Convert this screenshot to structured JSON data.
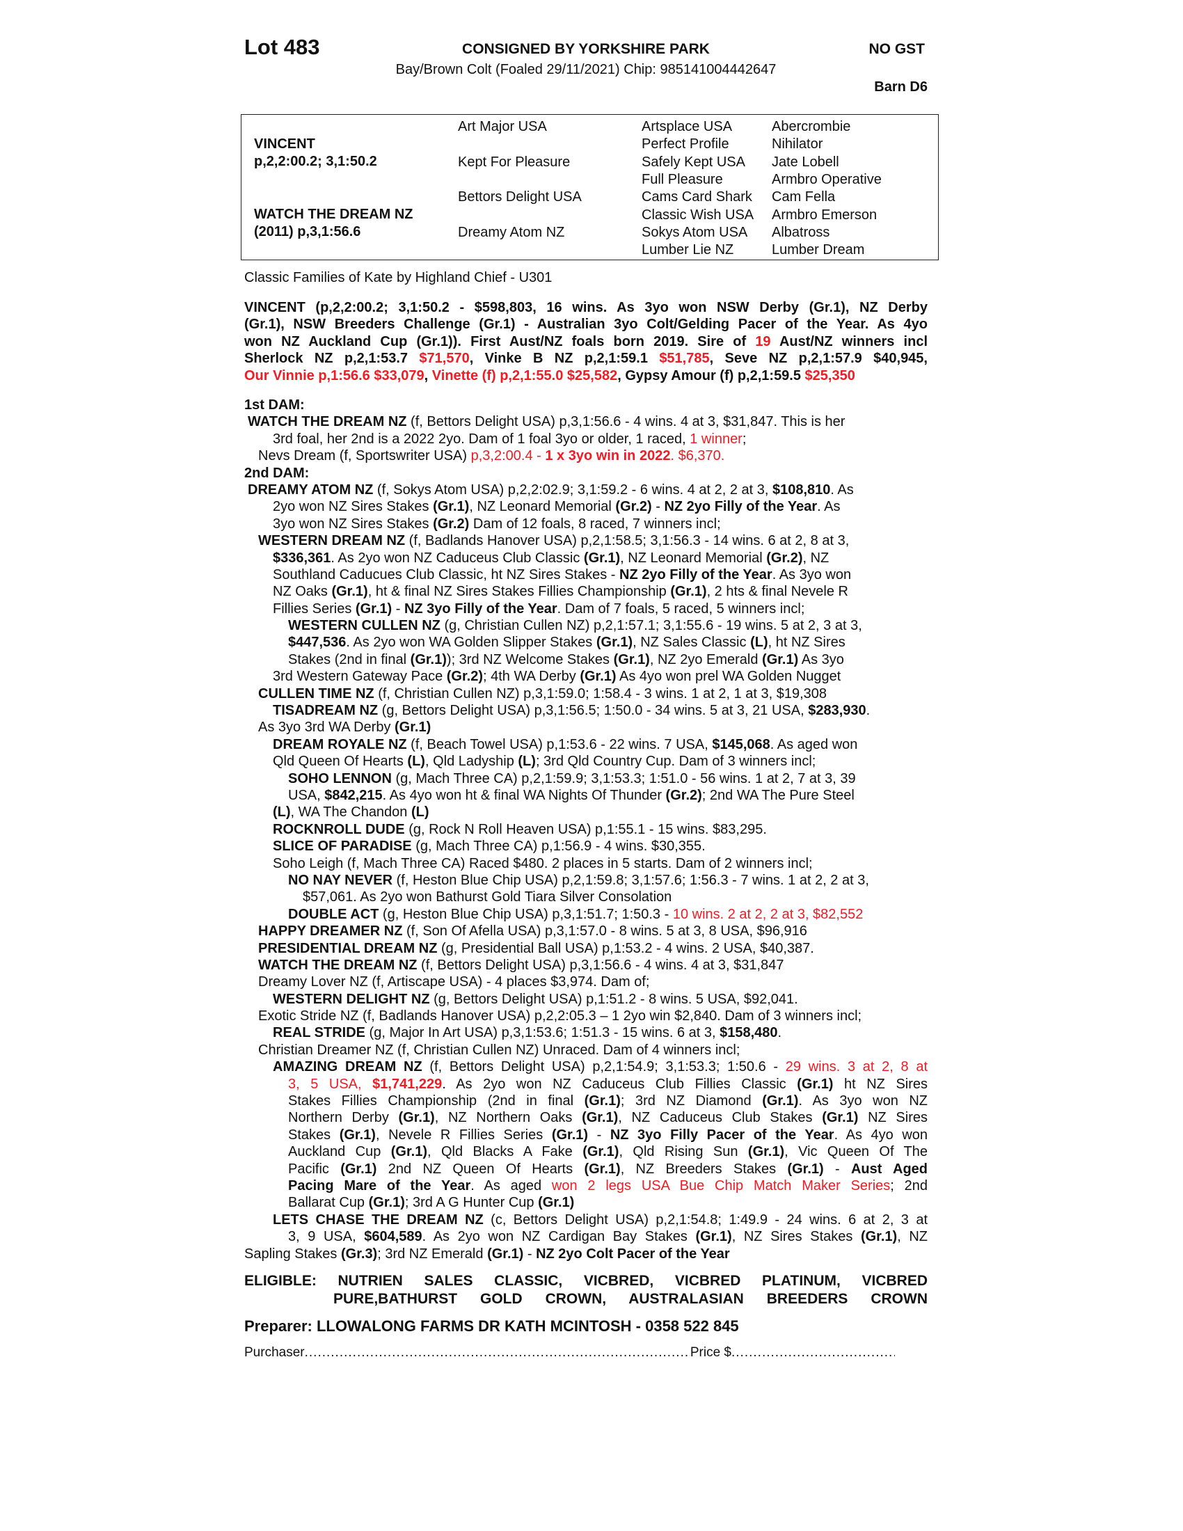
{
  "header": {
    "lot": "Lot 483",
    "consigned": "CONSIGNED BY YORKSHIRE PARK",
    "gst": "NO GST",
    "description": "Bay/Brown Colt (Foaled 29/11/2021) Chip: 985141004442647",
    "barn": "Barn D6"
  },
  "pedigree": {
    "sire": {
      "name": "VINCENT",
      "record": "p,2,2:00.2; 3,1:50.2"
    },
    "dam": {
      "name": "WATCH THE DREAM NZ",
      "record": "(2011) p,3,1:56.6"
    },
    "gen2": [
      "Art Major USA",
      "Kept For Pleasure",
      "Bettors Delight USA",
      "Dreamy Atom NZ"
    ],
    "gen3": [
      "Artsplace USA",
      "Perfect Profile",
      "Safely Kept USA",
      "Full Pleasure",
      "Cams Card Shark",
      "Classic Wish USA",
      "Sokys Atom USA",
      "Lumber Lie NZ"
    ],
    "gen4": [
      "Abercrombie",
      "Nihilator",
      "Jate Lobell",
      "Armbro Operative",
      "Cam Fella",
      "Armbro Emerson",
      "Albatross",
      "Lumber Dream"
    ]
  },
  "family": "Classic Families of Kate by Highland Chief - U301",
  "accent_color": "#ee1c24",
  "sire_summary": [
    [
      [
        "VINCENT (p,2,2:00.2; 3,1:50.2 - $598,803, 16 wins. As 3yo won NSW Derby (Gr.1), NZ Derby",
        "b"
      ]
    ],
    [
      [
        "(Gr.1), NSW Breeders Challenge (Gr.1) - Australian 3yo Colt/Gelding Pacer of the Year. As 4yo",
        "b"
      ]
    ],
    [
      [
        "won NZ Auckland Cup (Gr.1)). First Aust/NZ foals born 2019. Sire of ",
        "b"
      ],
      [
        "19",
        "rb"
      ],
      [
        " Aust/NZ winners incl",
        "b"
      ]
    ],
    [
      [
        "Sherlock NZ p,2,1:53.7 ",
        "b"
      ],
      [
        "$71,570",
        "rb"
      ],
      [
        ", Vinke B NZ p,2,1:59.1 ",
        "b"
      ],
      [
        "$51,785",
        "rb"
      ],
      [
        ", Seve NZ p,2,1:57.9 $40,945,",
        "b"
      ]
    ],
    [
      [
        "Our Vinnie p,1:56.6 $33,079",
        "rb"
      ],
      [
        ", ",
        "b"
      ],
      [
        "Vinette (f) p,2,1:55.0 $25,582",
        "rb"
      ],
      [
        ", Gypsy Amour (f) p,2,1:59.5 ",
        "b"
      ],
      [
        "$25,350",
        "rb"
      ]
    ]
  ],
  "family_lines": [
    [
      [
        "1st DAM:",
        "b"
      ]
    ],
    [
      [
        "WATCH THE DREAM NZ",
        "b"
      ],
      [
        " (f, Bettors Delight USA) p,3,1:56.6 - 4 wins. 4 at 3, $31,847. This is her",
        ""
      ]
    ],
    [
      [
        "3rd foal, her 2nd is a 2022 2yo. Dam of 1 foal 3yo or older, 1 raced, ",
        ""
      ],
      [
        "1 winner",
        "r"
      ],
      [
        ";",
        ""
      ]
    ],
    [
      [
        "Nevs Dream (f, Sportswriter USA) ",
        ""
      ],
      [
        "p,3,2:00.4 - ",
        "r"
      ],
      [
        "1 x 3yo win in 2022",
        "rb"
      ],
      [
        ". $6,370.",
        "r"
      ]
    ],
    [
      [
        "2nd DAM:",
        "b"
      ]
    ],
    [
      [
        "DREAMY ATOM NZ",
        "b"
      ],
      [
        " (f, Sokys Atom USA) p,2,2:02.9; 3,1:59.2 - 6 wins. 4 at 2, 2 at 3, ",
        ""
      ],
      [
        "$108,810",
        "b"
      ],
      [
        ". As",
        ""
      ]
    ],
    [
      [
        "2yo won NZ Sires Stakes ",
        ""
      ],
      [
        "(Gr.1)",
        "b"
      ],
      [
        ", NZ Leonard Memorial ",
        ""
      ],
      [
        "(Gr.2)",
        "b"
      ],
      [
        " - ",
        ""
      ],
      [
        "NZ 2yo Filly of the Year",
        "b"
      ],
      [
        ". As",
        ""
      ]
    ],
    [
      [
        "3yo won NZ Sires Stakes ",
        ""
      ],
      [
        "(Gr.2)",
        "b"
      ],
      [
        " Dam of 12 foals, 8 raced, 7 winners incl;",
        ""
      ]
    ],
    [
      [
        "WESTERN DREAM NZ",
        "b"
      ],
      [
        " (f, Badlands Hanover USA) p,2,1:58.5; 3,1:56.3 - 14 wins. 6 at 2, 8 at 3,",
        ""
      ]
    ],
    [
      [
        "$336,361",
        "b"
      ],
      [
        ". As 2yo won NZ Caduceus Club Classic ",
        ""
      ],
      [
        "(Gr.1)",
        "b"
      ],
      [
        ", NZ Leonard Memorial ",
        ""
      ],
      [
        "(Gr.2)",
        "b"
      ],
      [
        ", NZ",
        ""
      ]
    ],
    [
      [
        "Southland Caducues Club Classic, ht NZ Sires Stakes - ",
        ""
      ],
      [
        "NZ 2yo Filly of the Year",
        "b"
      ],
      [
        ". As 3yo won",
        ""
      ]
    ],
    [
      [
        "NZ Oaks ",
        ""
      ],
      [
        "(Gr.1)",
        "b"
      ],
      [
        ", ht & final NZ Sires Stakes Fillies Championship ",
        ""
      ],
      [
        "(Gr.1)",
        "b"
      ],
      [
        ", 2 hts & final Nevele R",
        ""
      ]
    ],
    [
      [
        "Fillies Series ",
        ""
      ],
      [
        "(Gr.1)",
        "b"
      ],
      [
        " - ",
        ""
      ],
      [
        "NZ 3yo Filly of the Year",
        "b"
      ],
      [
        ". Dam of 7 foals, 5 raced, 5 winners incl;",
        ""
      ]
    ],
    [
      [
        "WESTERN CULLEN NZ",
        "b"
      ],
      [
        " (g, Christian Cullen NZ) p,2,1:57.1; 3,1:55.6 - 19 wins. 5 at 2, 3 at 3,",
        ""
      ]
    ],
    [
      [
        "$447,536",
        "b"
      ],
      [
        ". As 2yo won WA Golden Slipper Stakes ",
        ""
      ],
      [
        "(Gr.1)",
        "b"
      ],
      [
        ", NZ Sales Classic ",
        ""
      ],
      [
        "(L)",
        "b"
      ],
      [
        ", ht NZ Sires",
        ""
      ]
    ],
    [
      [
        "Stakes (2nd in final ",
        ""
      ],
      [
        "(Gr.1)",
        "b"
      ],
      [
        "); 3rd NZ Welcome Stakes ",
        ""
      ],
      [
        "(Gr.1)",
        "b"
      ],
      [
        ", NZ 2yo Emerald ",
        ""
      ],
      [
        "(Gr.1)",
        "b"
      ],
      [
        " As 3yo",
        ""
      ]
    ],
    [
      [
        "3rd Western Gateway Pace ",
        ""
      ],
      [
        "(Gr.2)",
        "b"
      ],
      [
        "; 4th WA Derby ",
        ""
      ],
      [
        "(Gr.1)",
        "b"
      ],
      [
        " As 4yo won prel WA Golden Nugget",
        ""
      ]
    ],
    [
      [
        "CULLEN TIME NZ",
        "b"
      ],
      [
        " (f, Christian Cullen NZ) p,3,1:59.0; 1:58.4 - 3 wins. 1 at 2, 1 at 3, $19,308",
        ""
      ]
    ],
    [
      [
        "TISADREAM NZ",
        "b"
      ],
      [
        " (g, Bettors Delight USA) p,3,1:56.5; 1:50.0 - 34 wins. 5 at 3, 21 USA, ",
        ""
      ],
      [
        "$283,930",
        "b"
      ],
      [
        ".",
        ""
      ]
    ],
    [
      [
        "As 3yo 3rd WA Derby ",
        ""
      ],
      [
        "(Gr.1)",
        "b"
      ]
    ],
    [
      [
        "DREAM ROYALE NZ",
        "b"
      ],
      [
        " (f, Beach Towel USA) p,1:53.6 - 22 wins. 7 USA, ",
        ""
      ],
      [
        "$145,068",
        "b"
      ],
      [
        ". As aged won",
        ""
      ]
    ],
    [
      [
        "Qld Queen Of Hearts ",
        ""
      ],
      [
        "(L)",
        "b"
      ],
      [
        ", Qld Ladyship ",
        ""
      ],
      [
        "(L)",
        "b"
      ],
      [
        "; 3rd Qld Country Cup. Dam of 3 winners incl;",
        ""
      ]
    ],
    [
      [
        "SOHO LENNON",
        "b"
      ],
      [
        " (g, Mach Three CA) p,2,1:59.9; 3,1:53.3; 1:51.0 - 56 wins. 1 at 2, 7 at 3, 39",
        ""
      ]
    ],
    [
      [
        "USA, ",
        ""
      ],
      [
        "$842,215",
        "b"
      ],
      [
        ". As 4yo won ht & final WA Nights Of Thunder ",
        ""
      ],
      [
        "(Gr.2)",
        "b"
      ],
      [
        "; 2nd WA The Pure Steel",
        ""
      ]
    ],
    [
      [
        "(L)",
        "b"
      ],
      [
        ", WA The Chandon ",
        ""
      ],
      [
        "(L)",
        "b"
      ]
    ],
    [
      [
        "ROCKNROLL DUDE",
        "b"
      ],
      [
        " (g, Rock N Roll Heaven USA) p,1:55.1 - 15 wins. $83,295.",
        ""
      ]
    ],
    [
      [
        "SLICE OF PARADISE",
        "b"
      ],
      [
        " (g, Mach Three CA) p,1:56.9 - 4 wins. $30,355.",
        ""
      ]
    ],
    [
      [
        "Soho Leigh (f, Mach Three CA) Raced $480. 2 places in 5 starts. Dam of 2 winners incl;",
        ""
      ]
    ],
    [
      [
        "NO NAY NEVER",
        "b"
      ],
      [
        " (f, Heston Blue Chip USA) p,2,1:59.8; 3,1:57.6; 1:56.3 - 7 wins. 1 at 2, 2 at 3,",
        ""
      ]
    ],
    [
      [
        "$57,061. As 2yo won Bathurst Gold Tiara Silver Consolation",
        ""
      ]
    ],
    [
      [
        "DOUBLE ACT",
        "b"
      ],
      [
        " (g, Heston Blue Chip USA) p,3,1:51.7; 1:50.3 - ",
        ""
      ],
      [
        "10 wins. 2 at 2, 2 at 3, $82,552",
        "r"
      ]
    ],
    [
      [
        "HAPPY DREAMER NZ",
        "b"
      ],
      [
        " (f, Son Of Afella USA) p,3,1:57.0 - 8 wins. 5 at 3, 8 USA, $96,916",
        ""
      ]
    ],
    [
      [
        "PRESIDENTIAL DREAM NZ",
        "b"
      ],
      [
        " (g, Presidential Ball USA) p,1:53.2 - 4 wins. 2 USA, $40,387.",
        ""
      ]
    ],
    [
      [
        "WATCH THE DREAM NZ",
        "b"
      ],
      [
        " (f, Bettors Delight USA) p,3,1:56.6 - 4 wins. 4 at 3, $31,847",
        ""
      ]
    ],
    [
      [
        "Dreamy Lover NZ (f, Artiscape USA) - 4 places $3,974. Dam of;",
        ""
      ]
    ],
    [
      [
        "WESTERN DELIGHT NZ",
        "b"
      ],
      [
        " (g, Bettors Delight USA) p,1:51.2 - 8 wins. 5 USA, $92,041.",
        ""
      ]
    ],
    [
      [
        "Exotic Stride NZ (f, Badlands Hanover USA) p,2,2:05.3 – 1 2yo win $2,840. Dam of 3 winners incl;",
        ""
      ]
    ],
    [
      [
        "REAL STRIDE",
        "b"
      ],
      [
        " (g, Major In Art USA) p,3,1:53.6; 1:51.3 - 15 wins. 6 at 3, ",
        ""
      ],
      [
        "$158,480",
        "b"
      ],
      [
        ".",
        ""
      ]
    ],
    [
      [
        "Christian Dreamer NZ (f, Christian Cullen NZ) Unraced. Dam of 4 winners incl;",
        ""
      ]
    ],
    [
      [
        "AMAZING DREAM NZ",
        "b"
      ],
      [
        " (f, Bettors Delight USA) p,2,1:54.9; 3,1:53.3; 1:50.6 - ",
        ""
      ],
      [
        "29 wins. 3 at 2, 8 at",
        "r"
      ]
    ],
    [
      [
        "3, 5 USA, ",
        "r"
      ],
      [
        "$1,741,229",
        "rb"
      ],
      [
        ". As 2yo won NZ Caduceus Club Fillies Classic ",
        ""
      ],
      [
        "(Gr.1)",
        "b"
      ],
      [
        " ht NZ Sires",
        ""
      ]
    ],
    [
      [
        "Stakes Fillies Championship (2nd in final ",
        ""
      ],
      [
        "(Gr.1)",
        "b"
      ],
      [
        "; 3rd NZ Diamond ",
        ""
      ],
      [
        "(Gr.1)",
        "b"
      ],
      [
        ". As 3yo won NZ",
        ""
      ]
    ],
    [
      [
        "Northern Derby ",
        ""
      ],
      [
        "(Gr.1)",
        "b"
      ],
      [
        ", NZ Northern Oaks ",
        ""
      ],
      [
        "(Gr.1)",
        "b"
      ],
      [
        ", NZ Caduceus Club Stakes ",
        ""
      ],
      [
        "(Gr.1)",
        "b"
      ],
      [
        " NZ Sires",
        ""
      ]
    ],
    [
      [
        "Stakes ",
        ""
      ],
      [
        "(Gr.1)",
        "b"
      ],
      [
        ", Nevele R Fillies Series ",
        ""
      ],
      [
        "(Gr.1)",
        "b"
      ],
      [
        " - ",
        ""
      ],
      [
        "NZ 3yo Filly Pacer of the Year",
        "b"
      ],
      [
        ". As 4yo won",
        ""
      ]
    ],
    [
      [
        "Auckland Cup ",
        ""
      ],
      [
        "(Gr.1)",
        "b"
      ],
      [
        ", Qld Blacks A Fake ",
        ""
      ],
      [
        "(Gr.1)",
        "b"
      ],
      [
        ", Qld Rising Sun ",
        ""
      ],
      [
        "(Gr.1)",
        "b"
      ],
      [
        ", Vic Queen Of The",
        ""
      ]
    ],
    [
      [
        "Pacific ",
        ""
      ],
      [
        "(Gr.1)",
        "b"
      ],
      [
        " 2nd NZ Queen Of Hearts ",
        ""
      ],
      [
        "(Gr.1)",
        "b"
      ],
      [
        ", NZ Breeders Stakes ",
        ""
      ],
      [
        "(Gr.1)",
        "b"
      ],
      [
        " - ",
        ""
      ],
      [
        "Aust Aged",
        "b"
      ]
    ],
    [
      [
        "Pacing Mare of the Year",
        "b"
      ],
      [
        ". As aged ",
        ""
      ],
      [
        "won 2 legs USA Bue Chip Match Maker Series",
        "r"
      ],
      [
        "; 2nd",
        ""
      ]
    ],
    [
      [
        "Ballarat Cup ",
        ""
      ],
      [
        "(Gr.1)",
        "b"
      ],
      [
        "; 3rd A G Hunter Cup ",
        ""
      ],
      [
        "(Gr.1)",
        "b"
      ]
    ],
    [
      [
        "LETS CHASE THE DREAM NZ",
        "b"
      ],
      [
        " (c, Bettors Delight USA) p,2,1:54.8; 1:49.9 - 24 wins. 6 at 2, 3 at",
        ""
      ]
    ],
    [
      [
        "3, 9 USA, ",
        ""
      ],
      [
        "$604,589",
        "b"
      ],
      [
        ". As 2yo won NZ Cardigan Bay Stakes ",
        ""
      ],
      [
        "(Gr.1)",
        "b"
      ],
      [
        ", NZ Sires Stakes ",
        ""
      ],
      [
        "(Gr.1)",
        "b"
      ],
      [
        ", NZ",
        ""
      ]
    ],
    [
      [
        "Sapling Stakes ",
        ""
      ],
      [
        "(Gr.3)",
        "b"
      ],
      [
        "; 3rd NZ Emerald ",
        ""
      ],
      [
        "(Gr.1)",
        "b"
      ],
      [
        " - ",
        ""
      ],
      [
        "NZ 2yo Colt Pacer of the Year",
        "b"
      ]
    ]
  ],
  "eligible": [
    "ELIGIBLE: NUTRIEN SALES CLASSIC, VICBRED, VICBRED PLATINUM, VICBRED",
    "PURE,BATHURST GOLD CROWN, AUSTRALASIAN BREEDERS CROWN"
  ],
  "preparer": "Preparer: LLOWALONG FARMS DR KATH MCINTOSH - 0358 522 845",
  "purchaser_label": "Purchaser",
  "price_label": "Price $"
}
